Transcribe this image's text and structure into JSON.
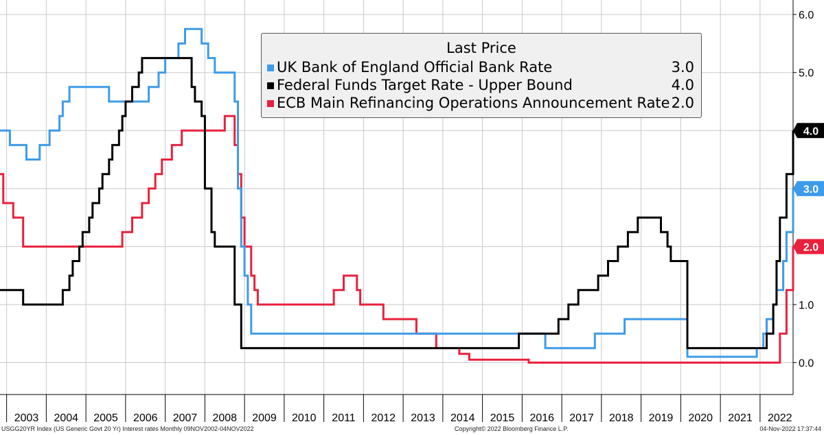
{
  "chart_data": {
    "type": "line",
    "title": "",
    "xlabel": "",
    "ylabel": "",
    "x_start": "2002-11",
    "x_end": "2022-11",
    "ylim": [
      -0.55,
      6.25
    ],
    "y_ticks": [
      "0.0",
      "1.0",
      "2.0",
      "3.0",
      "4.0",
      "5.0",
      "6.0"
    ],
    "x_tick_labels": [
      "2003",
      "2004",
      "2005",
      "2006",
      "2007",
      "2008",
      "2009",
      "2010",
      "2011",
      "2012",
      "2013",
      "2014",
      "2015",
      "2016",
      "2017",
      "2018",
      "2019",
      "2020",
      "2021",
      "2022"
    ],
    "grid": true,
    "legend_placement": "top-center",
    "legend_title": "Last Price",
    "series": [
      {
        "name": "UK Bank of England Official Bank Rate",
        "color": "#3d9be9",
        "last_value": "3.0",
        "points": [
          [
            "2002-11",
            4.0
          ],
          [
            "2003-02",
            3.75
          ],
          [
            "2003-07",
            3.5
          ],
          [
            "2003-11",
            3.75
          ],
          [
            "2004-02",
            4.0
          ],
          [
            "2004-05",
            4.25
          ],
          [
            "2004-06",
            4.5
          ],
          [
            "2004-08",
            4.75
          ],
          [
            "2005-08",
            4.5
          ],
          [
            "2006-08",
            4.75
          ],
          [
            "2006-11",
            5.0
          ],
          [
            "2007-01",
            5.25
          ],
          [
            "2007-05",
            5.5
          ],
          [
            "2007-07",
            5.75
          ],
          [
            "2007-12",
            5.5
          ],
          [
            "2008-02",
            5.25
          ],
          [
            "2008-04",
            5.0
          ],
          [
            "2008-10",
            4.5
          ],
          [
            "2008-11",
            3.0
          ],
          [
            "2008-12",
            2.0
          ],
          [
            "2009-01",
            1.5
          ],
          [
            "2009-02",
            1.0
          ],
          [
            "2009-03",
            0.5
          ],
          [
            "2016-08",
            0.25
          ],
          [
            "2017-11",
            0.5
          ],
          [
            "2018-08",
            0.75
          ],
          [
            "2020-03",
            0.1
          ],
          [
            "2021-12",
            0.25
          ],
          [
            "2022-02",
            0.5
          ],
          [
            "2022-03",
            0.75
          ],
          [
            "2022-05",
            1.0
          ],
          [
            "2022-06",
            1.25
          ],
          [
            "2022-08",
            1.75
          ],
          [
            "2022-09",
            2.25
          ],
          [
            "2022-11",
            3.0
          ]
        ]
      },
      {
        "name": "Federal Funds Target Rate - Upper Bound",
        "color": "#000000",
        "last_value": "4.0",
        "points": [
          [
            "2002-11",
            1.25
          ],
          [
            "2003-06",
            1.0
          ],
          [
            "2004-06",
            1.25
          ],
          [
            "2004-08",
            1.5
          ],
          [
            "2004-09",
            1.75
          ],
          [
            "2004-11",
            2.0
          ],
          [
            "2004-12",
            2.25
          ],
          [
            "2005-02",
            2.5
          ],
          [
            "2005-03",
            2.75
          ],
          [
            "2005-05",
            3.0
          ],
          [
            "2005-06",
            3.25
          ],
          [
            "2005-08",
            3.5
          ],
          [
            "2005-09",
            3.75
          ],
          [
            "2005-11",
            4.0
          ],
          [
            "2005-12",
            4.25
          ],
          [
            "2006-01",
            4.5
          ],
          [
            "2006-03",
            4.75
          ],
          [
            "2006-05",
            5.0
          ],
          [
            "2006-06",
            5.25
          ],
          [
            "2007-09",
            4.75
          ],
          [
            "2007-10",
            4.5
          ],
          [
            "2007-12",
            4.25
          ],
          [
            "2008-01",
            3.0
          ],
          [
            "2008-03",
            2.25
          ],
          [
            "2008-04",
            2.0
          ],
          [
            "2008-10",
            1.0
          ],
          [
            "2008-12",
            0.25
          ],
          [
            "2015-12",
            0.5
          ],
          [
            "2016-12",
            0.75
          ],
          [
            "2017-03",
            1.0
          ],
          [
            "2017-06",
            1.25
          ],
          [
            "2017-12",
            1.5
          ],
          [
            "2018-03",
            1.75
          ],
          [
            "2018-06",
            2.0
          ],
          [
            "2018-09",
            2.25
          ],
          [
            "2018-12",
            2.5
          ],
          [
            "2019-07",
            2.25
          ],
          [
            "2019-09",
            2.0
          ],
          [
            "2019-10",
            1.75
          ],
          [
            "2020-03",
            0.25
          ],
          [
            "2022-03",
            0.5
          ],
          [
            "2022-05",
            1.0
          ],
          [
            "2022-06",
            1.75
          ],
          [
            "2022-07",
            2.5
          ],
          [
            "2022-09",
            3.25
          ],
          [
            "2022-11",
            4.0
          ]
        ]
      },
      {
        "name": "ECB Main Refinancing Operations Announcement Rate",
        "color": "#e8213d",
        "last_value": "2.0",
        "points": [
          [
            "2002-11",
            3.25
          ],
          [
            "2002-12",
            2.75
          ],
          [
            "2003-03",
            2.5
          ],
          [
            "2003-06",
            2.0
          ],
          [
            "2005-12",
            2.25
          ],
          [
            "2006-03",
            2.5
          ],
          [
            "2006-06",
            2.75
          ],
          [
            "2006-08",
            3.0
          ],
          [
            "2006-10",
            3.25
          ],
          [
            "2006-12",
            3.5
          ],
          [
            "2007-03",
            3.75
          ],
          [
            "2007-06",
            4.0
          ],
          [
            "2008-07",
            4.25
          ],
          [
            "2008-10",
            3.75
          ],
          [
            "2008-11",
            3.25
          ],
          [
            "2008-12",
            2.5
          ],
          [
            "2009-01",
            2.0
          ],
          [
            "2009-03",
            1.5
          ],
          [
            "2009-04",
            1.25
          ],
          [
            "2009-05",
            1.0
          ],
          [
            "2011-04",
            1.25
          ],
          [
            "2011-07",
            1.5
          ],
          [
            "2011-11",
            1.25
          ],
          [
            "2011-12",
            1.0
          ],
          [
            "2012-07",
            0.75
          ],
          [
            "2013-05",
            0.5
          ],
          [
            "2013-11",
            0.25
          ],
          [
            "2014-06",
            0.15
          ],
          [
            "2014-09",
            0.05
          ],
          [
            "2016-03",
            0.0
          ],
          [
            "2022-07",
            0.5
          ],
          [
            "2022-09",
            1.25
          ],
          [
            "2022-11",
            2.0
          ]
        ]
      }
    ]
  },
  "footer": {
    "left": "USGG20YR Index (US Generic Govt 20 Yr) Interest rates  Monthly 09NOV2002-04NOV2022",
    "center": "Copyright© 2022 Bloomberg Finance L.P.",
    "right": "04-Nov-2022 17:37:44"
  }
}
